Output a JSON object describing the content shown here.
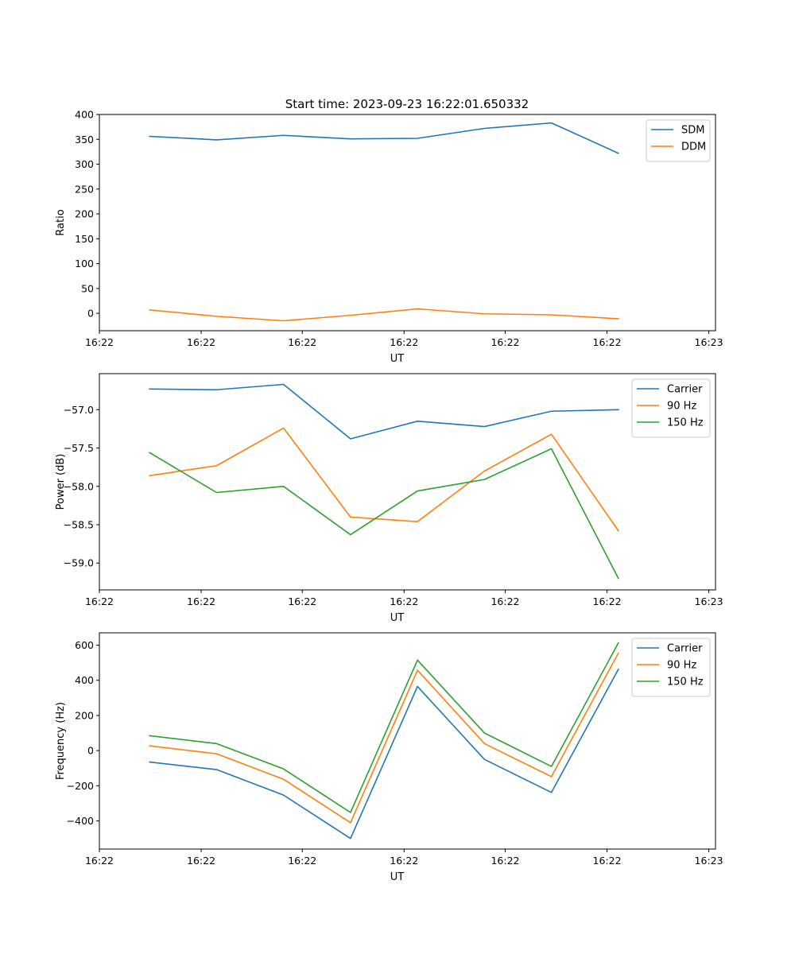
{
  "figure_title": "Start time: 2023-09-23 16:22:01.650332",
  "chart_data": [
    {
      "type": "line",
      "id": "ratio",
      "xlabel": "UT",
      "ylabel": "Ratio",
      "x": [
        0,
        1,
        2,
        3,
        4,
        5,
        6,
        7
      ],
      "xlim": [
        -0.75,
        8.45
      ],
      "xticks": [
        -0.75,
        0.77,
        2.28,
        3.8,
        5.31,
        6.83,
        8.35
      ],
      "xtick_labels": [
        "16:22",
        "16:22",
        "16:22",
        "16:22",
        "16:22",
        "16:22",
        "16:23"
      ],
      "ylim": [
        -35,
        400
      ],
      "yticks": [
        0,
        50,
        100,
        150,
        200,
        250,
        300,
        350,
        400
      ],
      "ytick_labels": [
        "0",
        "50",
        "100",
        "150",
        "200",
        "250",
        "300",
        "350",
        "400"
      ],
      "legend_position": "top-right",
      "series": [
        {
          "name": "SDM",
          "color": "#1f77b4",
          "values": [
            356,
            349,
            358,
            351,
            352,
            372,
            383,
            322
          ]
        },
        {
          "name": "DDM",
          "color": "#ff7f0e",
          "values": [
            7,
            -6,
            -15,
            -4,
            9,
            -1,
            -3,
            -11
          ]
        }
      ]
    },
    {
      "type": "line",
      "id": "power",
      "xlabel": "UT",
      "ylabel": "Power (dB)",
      "x": [
        0,
        1,
        2,
        3,
        4,
        5,
        6,
        7
      ],
      "xlim": [
        -0.75,
        8.45
      ],
      "xticks": [
        -0.75,
        0.77,
        2.28,
        3.8,
        5.31,
        6.83,
        8.35
      ],
      "xtick_labels": [
        "16:22",
        "16:22",
        "16:22",
        "16:22",
        "16:22",
        "16:22",
        "16:23"
      ],
      "ylim": [
        -59.35,
        -56.53
      ],
      "yticks": [
        -57.0,
        -57.5,
        -58.0,
        -58.5,
        -59.0
      ],
      "ytick_labels": [
        "−57.0",
        "−57.5",
        "−58.0",
        "−58.5",
        "−59.0"
      ],
      "legend_position": "top-right",
      "series": [
        {
          "name": "Carrier",
          "color": "#1f77b4",
          "values": [
            -56.73,
            -56.74,
            -56.67,
            -57.38,
            -57.15,
            -57.22,
            -57.02,
            -57.0
          ]
        },
        {
          "name": "90 Hz",
          "color": "#ff7f0e",
          "values": [
            -57.86,
            -57.73,
            -57.24,
            -58.4,
            -58.46,
            -57.8,
            -57.32,
            -58.58
          ]
        },
        {
          "name": "150 Hz",
          "color": "#2ca02c",
          "values": [
            -57.56,
            -58.08,
            -58.0,
            -58.63,
            -58.06,
            -57.91,
            -57.51,
            -59.2
          ]
        }
      ]
    },
    {
      "type": "line",
      "id": "frequency",
      "xlabel": "UT",
      "ylabel": "Frequency (Hz)",
      "x": [
        0,
        1,
        2,
        3,
        4,
        5,
        6,
        7
      ],
      "xlim": [
        -0.75,
        8.45
      ],
      "xticks": [
        -0.75,
        0.77,
        2.28,
        3.8,
        5.31,
        6.83,
        8.35
      ],
      "xtick_labels": [
        "16:22",
        "16:22",
        "16:22",
        "16:22",
        "16:22",
        "16:22",
        "16:23"
      ],
      "ylim": [
        -560,
        670
      ],
      "yticks": [
        -400,
        -200,
        0,
        200,
        400,
        600
      ],
      "ytick_labels": [
        "−400",
        "−200",
        "0",
        "200",
        "400",
        "600"
      ],
      "legend_position": "top-right",
      "series": [
        {
          "name": "Carrier",
          "color": "#1f77b4",
          "values": [
            -65,
            -108,
            -253,
            -500,
            365,
            -50,
            -238,
            463
          ]
        },
        {
          "name": "90 Hz",
          "color": "#ff7f0e",
          "values": [
            27,
            -18,
            -163,
            -410,
            457,
            40,
            -148,
            555
          ]
        },
        {
          "name": "150 Hz",
          "color": "#2ca02c",
          "values": [
            85,
            40,
            -104,
            -352,
            515,
            100,
            -90,
            613
          ]
        }
      ]
    }
  ]
}
